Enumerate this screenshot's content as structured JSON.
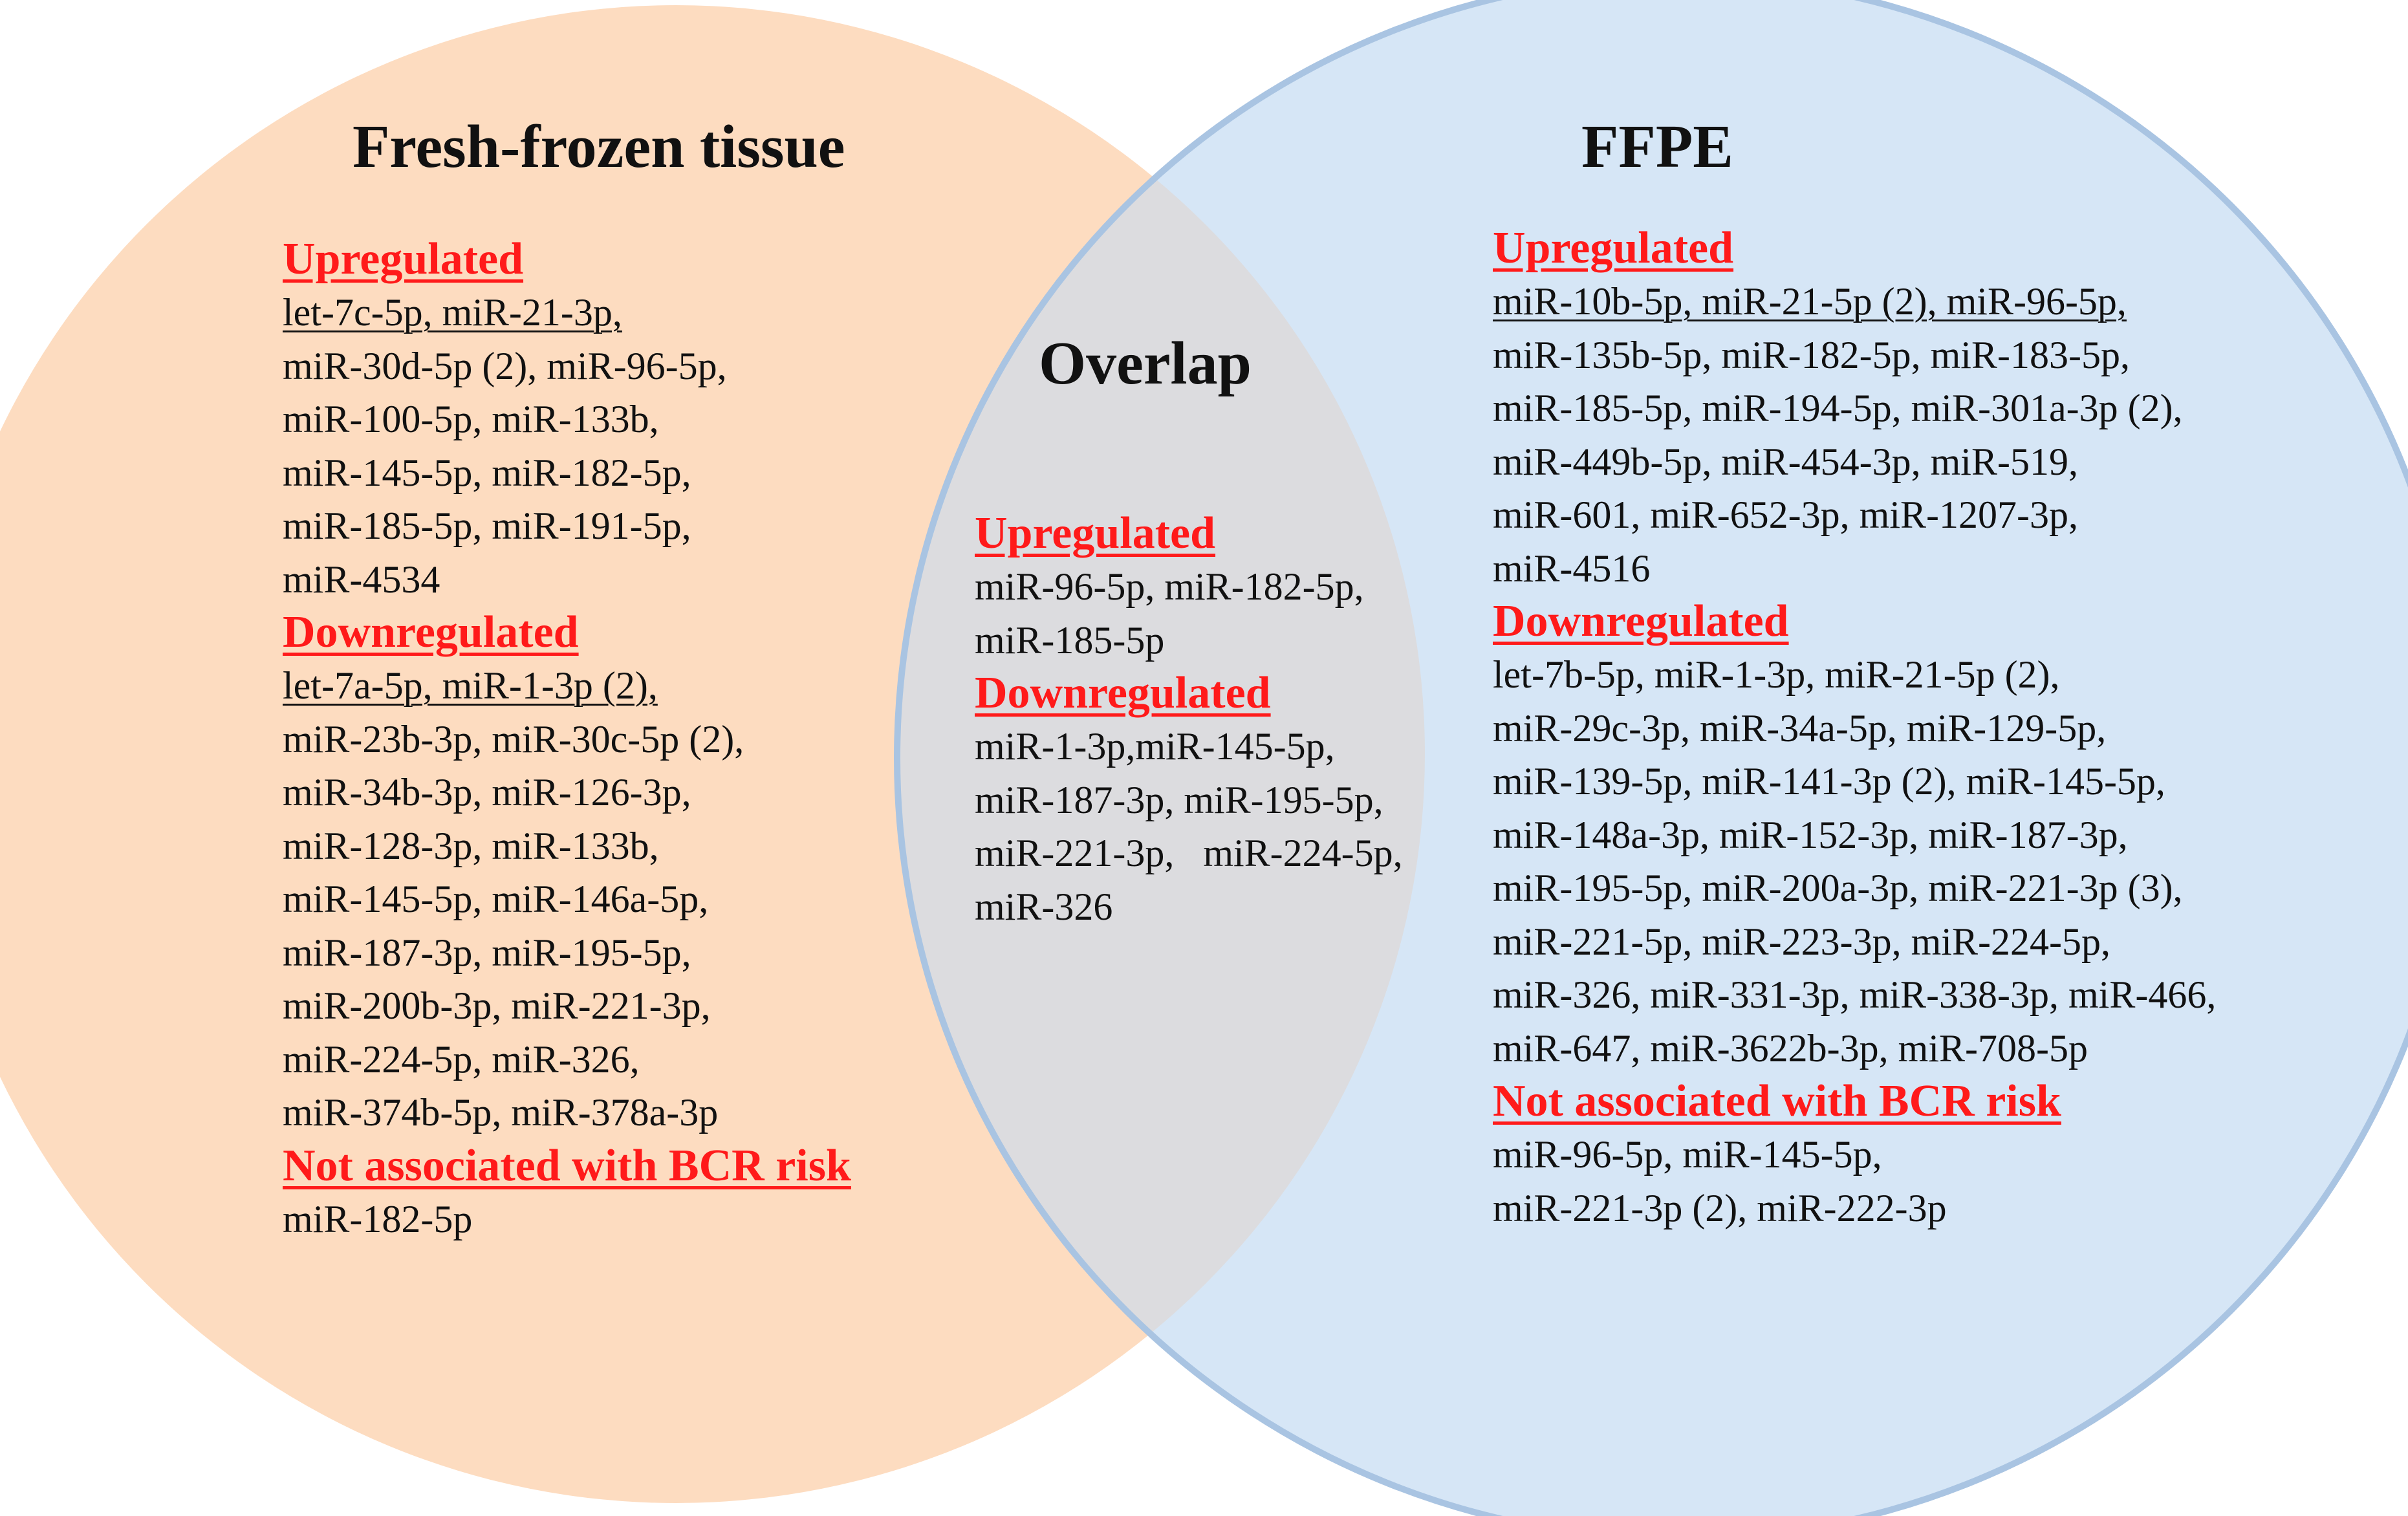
{
  "colors": {
    "left_circle_fill": "#fddcc0",
    "right_circle_fill": "#d6e6f6",
    "overlap_fill": "#dcdcdf",
    "right_circle_stroke": "#a9c4e2",
    "section_heading": "#ff1a1a"
  },
  "left": {
    "title": "Fresh-frozen tissue",
    "sections": [
      {
        "heading": "Upregulated",
        "lines": [
          "let-7c-5p, miR-21-3p,",
          "miR-30d-5p (2), miR-96-5p,",
          "miR-100-5p, miR-133b,",
          "miR-145-5p, miR-182-5p,",
          "miR-185-5p, miR-191-5p,",
          "miR-4534"
        ],
        "underlined_lines": [
          0
        ]
      },
      {
        "heading": "Downregulated",
        "lines": [
          "let-7a-5p, miR-1-3p (2),",
          "miR-23b-3p, miR-30c-5p (2),",
          "miR-34b-3p, miR-126-3p,",
          "miR-128-3p, miR-133b,",
          "miR-145-5p, miR-146a-5p,",
          "miR-187-3p, miR-195-5p,",
          "miR-200b-3p, miR-221-3p,",
          "miR-224-5p, miR-326,",
          "miR-374b-5p, miR-378a-3p"
        ],
        "underlined_lines": [
          0
        ]
      },
      {
        "heading": "Not associated with BCR risk",
        "lines": [
          "miR-182-5p"
        ],
        "underlined_lines": []
      }
    ]
  },
  "overlap": {
    "title": "Overlap",
    "sections": [
      {
        "heading": "Upregulated",
        "lines": [
          "miR-96-5p, miR-182-5p,",
          "miR-185-5p"
        ],
        "underlined_lines": []
      },
      {
        "heading": "Downregulated",
        "lines": [
          "miR-1-3p,miR-145-5p,",
          "miR-187-3p, miR-195-5p,",
          "miR-221-3p,   miR-224-5p,",
          "miR-326"
        ],
        "underlined_lines": []
      }
    ]
  },
  "right": {
    "title": "FFPE",
    "sections": [
      {
        "heading": "Upregulated",
        "lines": [
          "miR-10b-5p, miR-21-5p (2), miR-96-5p,",
          "miR-135b-5p, miR-182-5p, miR-183-5p,",
          "miR-185-5p, miR-194-5p, miR-301a-3p (2),",
          "miR-449b-5p, miR-454-3p, miR-519,",
          "miR-601, miR-652-3p, miR-1207-3p,",
          "miR-4516"
        ],
        "underlined_lines": [
          0
        ]
      },
      {
        "heading": "Downregulated",
        "lines": [
          "let-7b-5p, miR-1-3p, miR-21-5p (2),",
          "miR-29c-3p, miR-34a-5p, miR-129-5p,",
          "miR-139-5p, miR-141-3p (2), miR-145-5p,",
          "miR-148a-3p, miR-152-3p, miR-187-3p,",
          "miR-195-5p, miR-200a-3p, miR-221-3p (3),",
          "miR-221-5p, miR-223-3p, miR-224-5p,",
          "miR-326, miR-331-3p, miR-338-3p, miR-466,",
          "miR-647, miR-3622b-3p, miR-708-5p"
        ],
        "underlined_lines": []
      },
      {
        "heading": "Not associated with BCR risk",
        "lines": [
          "miR-96-5p, miR-145-5p,",
          "miR-221-3p (2), miR-222-3p"
        ],
        "underlined_lines": []
      }
    ]
  }
}
